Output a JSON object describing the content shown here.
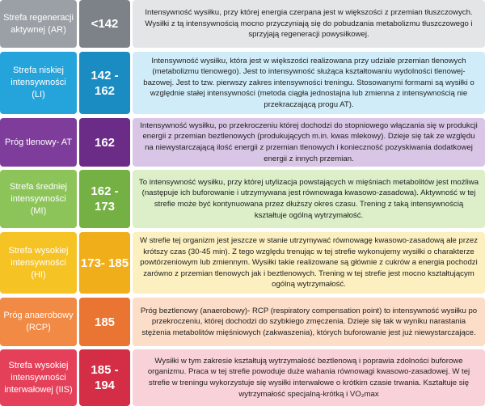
{
  "zones": [
    {
      "name": "Strefa regeneracji aktywnej (AR)",
      "value": "<142",
      "description": "Intensywność wysiłku, przy której energia czerpana jest w większości z przemian tłuszczowych. Wysiłki z tą intensywnością mocno przyczyniają się do pobudzania metabolizmu tłuszczowego i sprzyjają regeneracji powysiłkowej.",
      "colors": {
        "name": "#9aa0a6",
        "value": "#7d8288",
        "desc": "#e4e5e7"
      }
    },
    {
      "name": "Strefa niskiej intensywności (LI)",
      "value": "142 - 162",
      "description": "Intensywność wysiłku, która jest w większości realizowana przy udziale przemian tlenowych (metabolizmu tlenowego). Jest to intensywność służąca kształtowaniu wydolności tlenowej- bazowej. Jest to tzw. pierwszy zakres intensywności treningu. Stosowanymi formami są wysiłki o względnie stałej intensywności (metoda ciągła jednostajna lub zmienna z intensywnością nie przekraczającą progu AT).",
      "colors": {
        "name": "#25a4dc",
        "value": "#1b8cc2",
        "desc": "#d0ecf8"
      }
    },
    {
      "name": "Próg tlenowy- AT",
      "value": "162",
      "description": "Intensywność wysiłku, po przekroczeniu której dochodzi do stopniowego włączania się w produkcji energii z przemian beztlenowych (produkujących m.in. kwas mlekowy). Dzieje się tak ze względu na niewystarczającą ilość energii z przemian tlenowych i konieczność pozyskiwania dodatkowej energii z innych przemian.",
      "colors": {
        "name": "#7e3d9b",
        "value": "#6a2c86",
        "desc": "#d9c6e6"
      }
    },
    {
      "name": "Strefa średniej intensywności (MI)",
      "value": "162 - 173",
      "description": "To intensywność wysiłku, przy której utylizacja powstających w mięśniach metabolitów jest możliwa (następuje ich buforowanie i utrzymywana jest równowaga kwasowo-zasadowa). Aktywność w tej strefie może być kontynuowana przez dłuższy okres czasu. Trening z taką intensywnością kształtuje ogólną wytrzymałość.",
      "colors": {
        "name": "#8cc45a",
        "value": "#74b043",
        "desc": "#dcefc9"
      }
    },
    {
      "name": "Strefa wysokiej intensywności (HI)",
      "value": "173- 185",
      "description": "W strefie tej organizm jest jeszcze w stanie utrzymywać równowagę kwasowo-zasadową ale przez krótszy czas (30-45 min). Z tego względu trenując w tej strefie wykonujemy wysiłki o charakterze powtórzeniowym lub zmiennym. Wysiłki takie realizowane są głównie z cukrów a energia pochodzi zarówno z przemian tlenowych jak i beztlenowych. Trening w tej strefie jest mocno kształtującym ogólną wytrzymałość.",
      "colors": {
        "name": "#f6c324",
        "value": "#f0ae1a",
        "desc": "#fcefc0"
      }
    },
    {
      "name": "Próg anaerobowy (RCP)",
      "value": "185",
      "description": "Próg beztlenowy (anaerobowy)- RCP (respiratory compensation point) to intensywność wysiłku po przekroczeniu, której dochodzi do szybkiego zmęczenia. Dzieje się tak w wyniku narastania stężenia metabolitów mięśniowych (zakwaszenia), których buforowanie jest już niewystarczające.",
      "colors": {
        "name": "#f08a45",
        "value": "#ea7432",
        "desc": "#fbddc8"
      }
    },
    {
      "name": "Strefa wysokiej intensywności interwałowej (IIS)",
      "value": "185 - 194",
      "description": "Wysiłki w tym zakresie kształtują wytrzymałość beztlenową i poprawia zdolności buforowe organizmu. Praca w tej strefie powoduje duże wahania równowagi kwasowo-zasadowej. W tej strefie w treningu wykorzystuje się wysiłki interwałowe o krótkim czasie trwania. Kształtuje się wytrzymałość specjalną-krótką i VO₂max",
      "colors": {
        "name": "#e4405a",
        "value": "#d42d46",
        "desc": "#f8d2d8"
      }
    }
  ]
}
